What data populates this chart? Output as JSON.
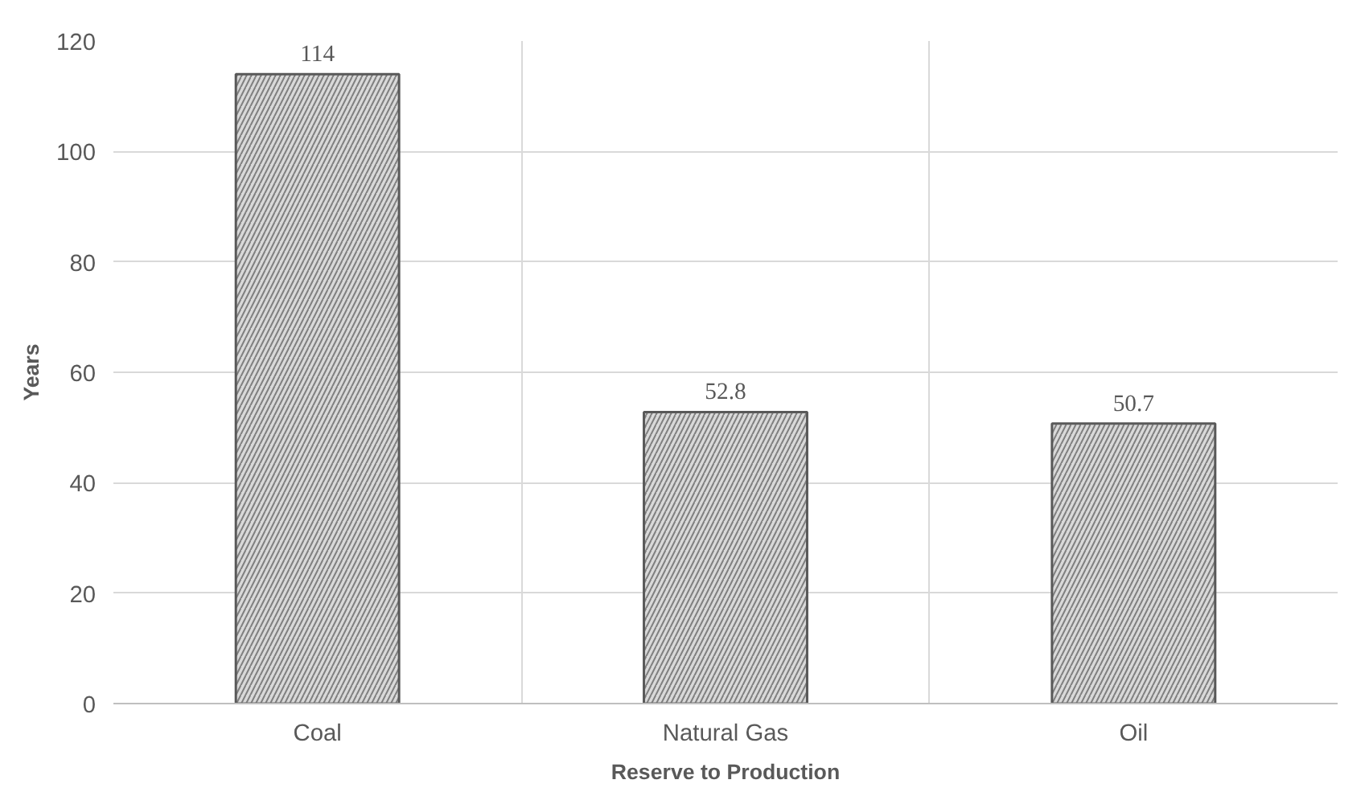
{
  "chart_data": {
    "type": "bar",
    "xlabel": "Reserve to Production",
    "ylabel": "Years",
    "categories": [
      "Coal",
      "Natural Gas",
      "Oil"
    ],
    "values": [
      114,
      52.8,
      50.7
    ],
    "color": "#d9d9d9",
    "ylim": [
      0,
      120
    ],
    "yticks": [
      0,
      20,
      40,
      60,
      80,
      100,
      120
    ],
    "grid": true,
    "data_labels": true
  }
}
